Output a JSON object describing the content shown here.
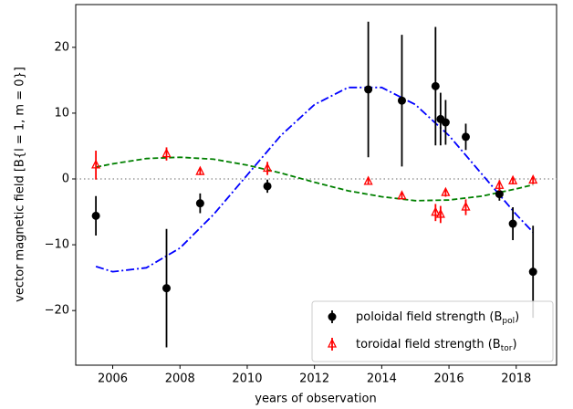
{
  "chart_data": {
    "type": "scatter",
    "xlabel": "years of observation",
    "ylabel": "vector magnetic field [B{l = 1, m = 0}]",
    "xlim": [
      2004.9,
      2019.2
    ],
    "ylim": [
      -28.3,
      26.5
    ],
    "xticks": [
      2006,
      2008,
      2010,
      2012,
      2014,
      2016,
      2018
    ],
    "yticks": [
      -20,
      -10,
      0,
      10,
      20
    ],
    "hline": 0,
    "legend": "lower right",
    "series": [
      {
        "name": "poloidal field strength (B",
        "subscript": "pol",
        "suffix": ")",
        "color": "#000000",
        "marker": "circle",
        "x": [
          2005.5,
          2007.6,
          2008.6,
          2010.6,
          2013.6,
          2014.6,
          2015.6,
          2015.75,
          2015.9,
          2016.5,
          2017.5,
          2017.9,
          2018.5
        ],
        "values": [
          -5.6,
          -16.6,
          -3.7,
          -1.1,
          13.6,
          11.9,
          14.1,
          9.1,
          8.6,
          6.4,
          -2.3,
          -6.8,
          -14.1
        ],
        "errors": [
          3,
          9,
          1.5,
          1,
          10.3,
          10,
          9,
          4,
          3.4,
          2,
          1,
          2.5,
          7
        ]
      },
      {
        "name": "toroidal field strength (B",
        "subscript": "tor",
        "suffix": ")",
        "color": "#ff0000",
        "marker": "triangle",
        "x": [
          2005.5,
          2007.6,
          2008.6,
          2010.6,
          2013.6,
          2014.6,
          2015.6,
          2015.75,
          2015.9,
          2016.5,
          2017.5,
          2017.9,
          2018.5
        ],
        "values": [
          2.1,
          3.8,
          1.1,
          1.6,
          -0.4,
          -2.6,
          -5.1,
          -5.4,
          -2.1,
          -4.3,
          -1.0,
          -0.3,
          -0.2
        ],
        "errors": [
          2.2,
          1,
          0.5,
          1,
          0.5,
          0.5,
          1.3,
          1.3,
          0.6,
          1.2,
          0.8,
          0.5,
          0.6
        ]
      }
    ],
    "curves": [
      {
        "color": "#0000ff",
        "dash": "dashdot",
        "x": [
          2005.5,
          2006,
          2007,
          2008,
          2009,
          2010,
          2011,
          2012,
          2013,
          2014,
          2015,
          2016,
          2017,
          2018,
          2018.5
        ],
        "values": [
          -13.3,
          -14.1,
          -13.5,
          -10.5,
          -5.4,
          0.6,
          6.6,
          11.3,
          13.9,
          13.9,
          11.3,
          6.6,
          0.6,
          -5.4,
          -8.1
        ]
      },
      {
        "color": "#008000",
        "dash": "dashed",
        "x": [
          2005.5,
          2006,
          2007,
          2008,
          2009,
          2010,
          2011,
          2012,
          2013,
          2014,
          2015,
          2016,
          2017,
          2018,
          2018.5
        ],
        "values": [
          1.8,
          2.3,
          3.1,
          3.3,
          3.0,
          2.1,
          0.9,
          -0.5,
          -1.8,
          -2.7,
          -3.3,
          -3.2,
          -2.6,
          -1.5,
          -0.9
        ]
      }
    ]
  }
}
